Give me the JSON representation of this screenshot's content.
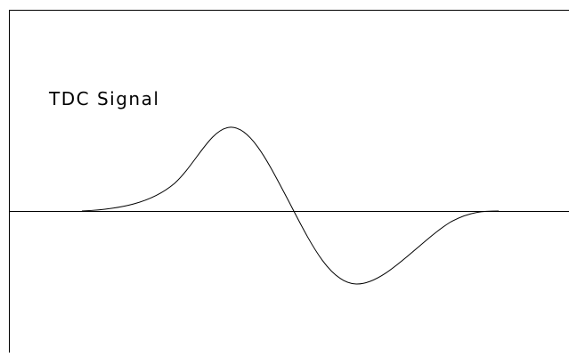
{
  "diagram": {
    "label": "TDC Signal",
    "line_color": "#000000",
    "background": "#ffffff"
  }
}
